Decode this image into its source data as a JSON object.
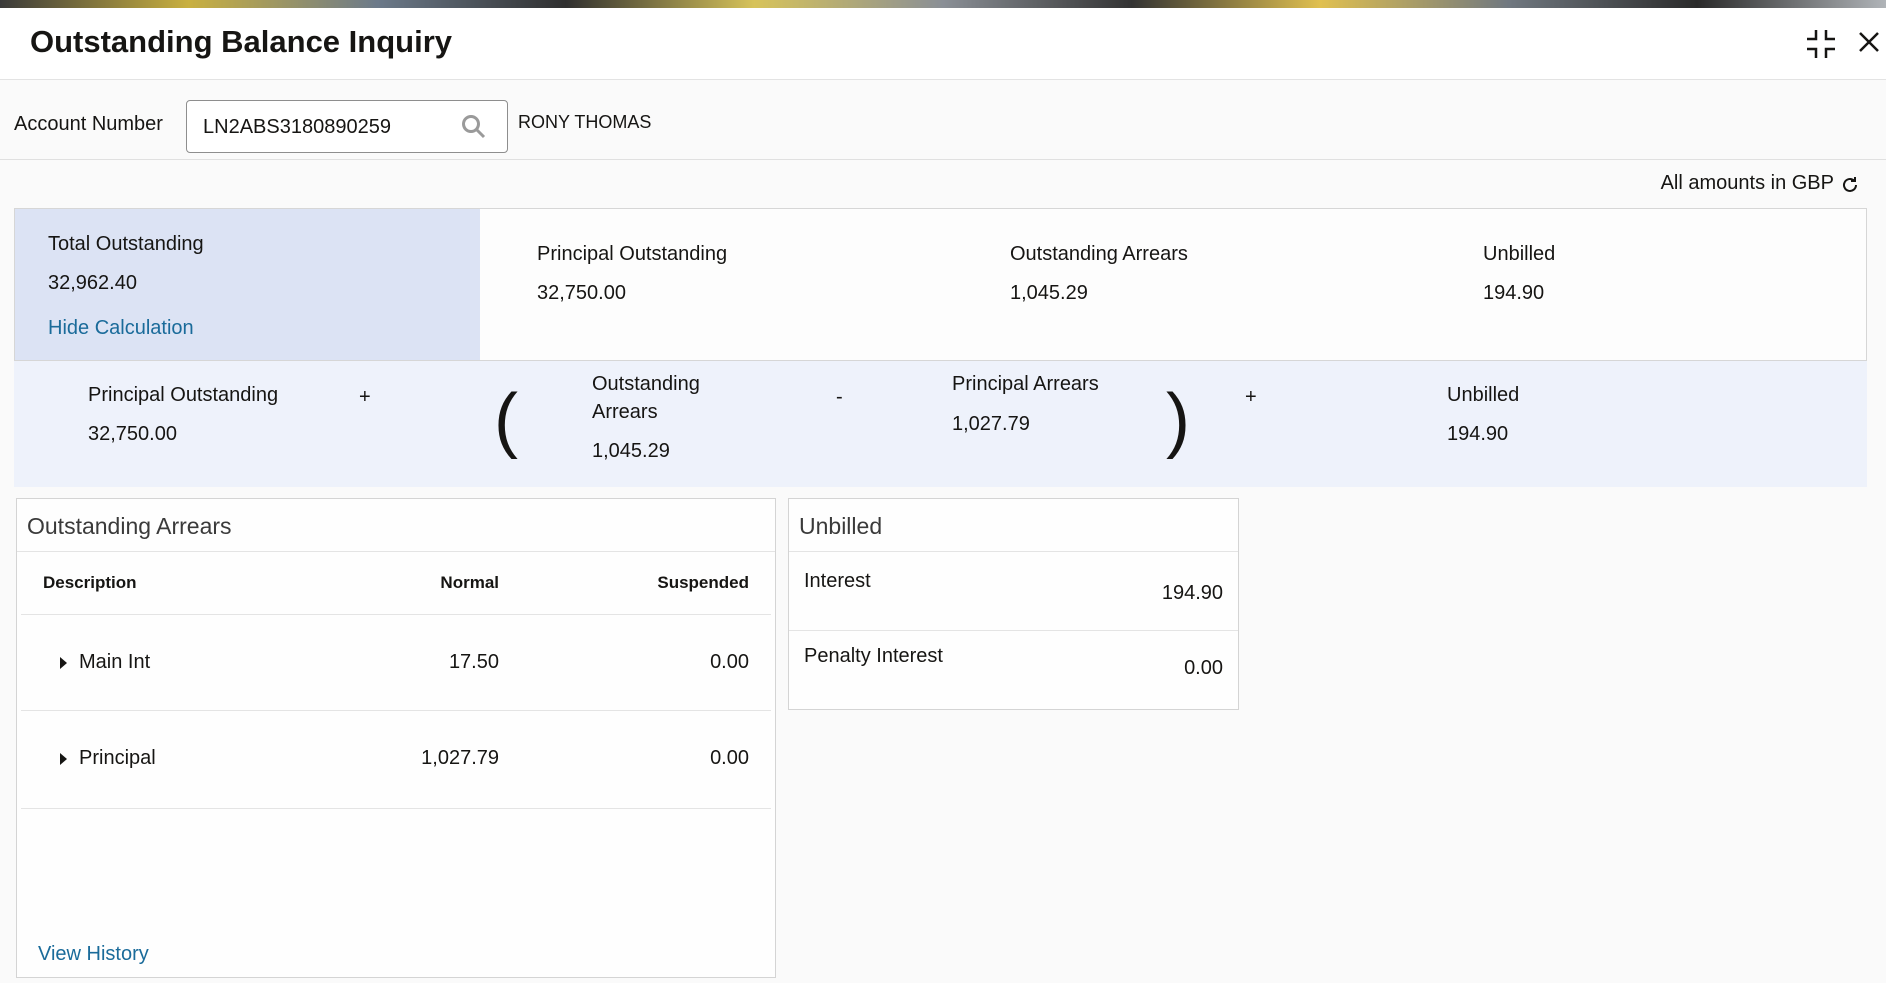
{
  "header": {
    "title": "Outstanding Balance Inquiry",
    "icons": [
      "collapse-icon",
      "close-icon"
    ]
  },
  "account": {
    "label": "Account Number",
    "value": "LN2ABS3180890259",
    "customer_name": "RONY THOMAS"
  },
  "currency_note": "All amounts in GBP",
  "summary": {
    "total_label": "Total Outstanding",
    "total_value": "32,962.40",
    "hide_calc": "Hide Calculation",
    "items": [
      {
        "label": "Principal Outstanding",
        "value": "32,750.00"
      },
      {
        "label": "Outstanding Arrears",
        "value": "1,045.29"
      },
      {
        "label": "Unbilled",
        "value": "194.90"
      }
    ]
  },
  "calculation": {
    "principal_outstanding": {
      "label": "Principal Outstanding",
      "value": "32,750.00"
    },
    "plus1": "+",
    "open_paren": "(",
    "outstanding_arrears": {
      "label_line1": "Outstanding",
      "label_line2": "Arrears",
      "value": "1,045.29"
    },
    "minus": "-",
    "principal_arrears": {
      "label": "Principal Arrears",
      "value": "1,027.79"
    },
    "close_paren": ")",
    "plus2": "+",
    "unbilled": {
      "label": "Unbilled",
      "value": "194.90"
    }
  },
  "arrears": {
    "title": "Outstanding Arrears",
    "columns": [
      "Description",
      "Normal",
      "Suspended"
    ],
    "rows": [
      {
        "description": "Main Int",
        "normal": "17.50",
        "suspended": "0.00"
      },
      {
        "description": "Principal",
        "normal": "1,027.79",
        "suspended": "0.00"
      }
    ],
    "view_history": "View History"
  },
  "unbilled": {
    "title": "Unbilled",
    "rows": [
      {
        "label": "Interest",
        "value": "194.90"
      },
      {
        "label": "Penalty Interest",
        "value": "0.00"
      }
    ]
  }
}
